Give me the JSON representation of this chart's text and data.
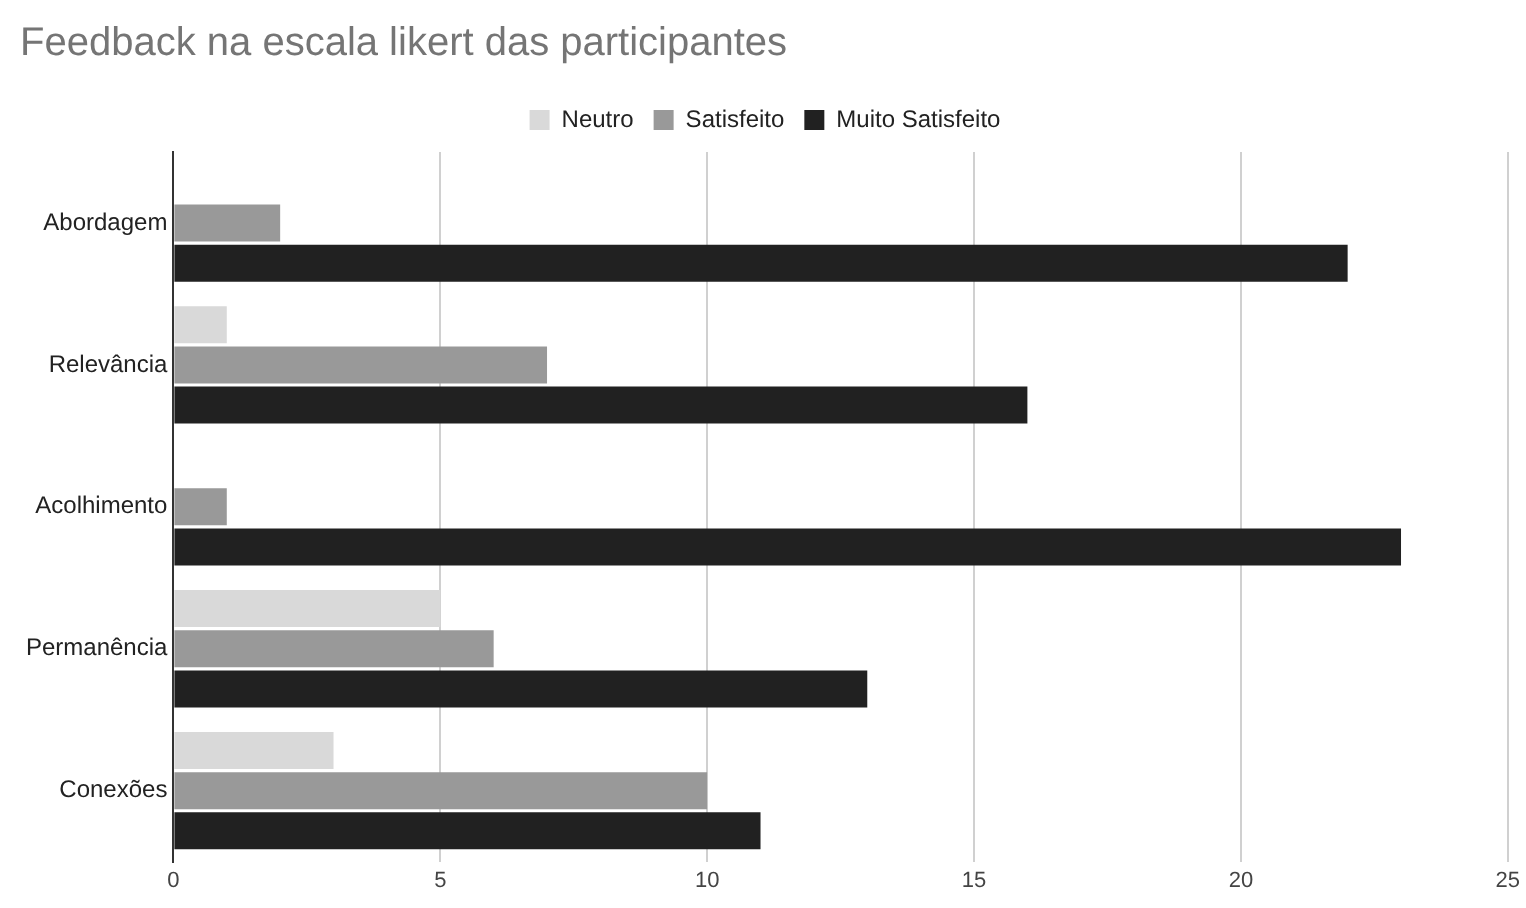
{
  "chart_data": {
    "type": "bar",
    "orientation": "horizontal",
    "title": "Feedback na escala likert das participantes",
    "categories": [
      "Abordagem",
      "Relevância",
      "Acolhimento",
      "Permanência",
      "Conexões"
    ],
    "series": [
      {
        "name": "Neutro",
        "color": "#d9d9d9",
        "values": [
          0,
          1,
          0,
          5,
          3
        ]
      },
      {
        "name": "Satisfeito",
        "color": "#999999",
        "values": [
          2,
          7,
          1,
          6,
          10
        ]
      },
      {
        "name": "Muito Satisfeito",
        "color": "#212121",
        "values": [
          22,
          16,
          23,
          13,
          11
        ]
      }
    ],
    "xlim": [
      0,
      25
    ],
    "xticks": [
      0,
      5,
      10,
      15,
      20,
      25
    ],
    "grid": "x",
    "legend": "top"
  }
}
